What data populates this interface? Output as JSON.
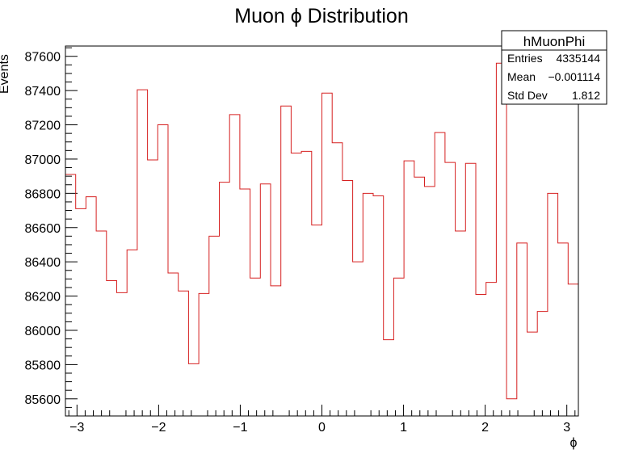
{
  "chart_data": {
    "type": "histogram",
    "title": "Muon ϕ Distribution",
    "xlabel": "ϕ",
    "ylabel": "Events",
    "xlim": [
      -3.1416,
      3.1416
    ],
    "ylim": [
      85500,
      87660
    ],
    "xticks": [
      -3,
      -2,
      -1,
      0,
      1,
      2,
      3
    ],
    "xtick_labels": [
      "−3",
      "−2",
      "−1",
      "0",
      "1",
      "2",
      "3"
    ],
    "yticks": [
      85600,
      85800,
      86000,
      86200,
      86400,
      86600,
      86800,
      87000,
      87200,
      87400,
      87600
    ],
    "ytick_labels": [
      "85600",
      "85800",
      "86000",
      "86200",
      "86400",
      "86600",
      "86800",
      "87000",
      "87200",
      "87400",
      "87600"
    ],
    "line_color": "#d62020",
    "bins": 50,
    "values": [
      86910,
      86710,
      86780,
      86580,
      86290,
      86220,
      86470,
      87405,
      86995,
      87200,
      86335,
      86230,
      85805,
      86215,
      86550,
      86865,
      87260,
      86825,
      86305,
      86855,
      86260,
      87310,
      87035,
      87045,
      86615,
      87385,
      87095,
      86875,
      86400,
      86800,
      86785,
      85945,
      86305,
      86990,
      86895,
      86840,
      87155,
      86980,
      86580,
      86975,
      86210,
      86280,
      87560,
      85600,
      86510,
      85990,
      86110,
      86800,
      86510,
      86270
    ]
  },
  "stats": {
    "name": "hMuonPhi",
    "rows": [
      {
        "label": "Entries",
        "value": "4335144"
      },
      {
        "label": "Mean",
        "value": "−0.001114"
      },
      {
        "label": "Std Dev",
        "value": "1.812"
      }
    ]
  }
}
